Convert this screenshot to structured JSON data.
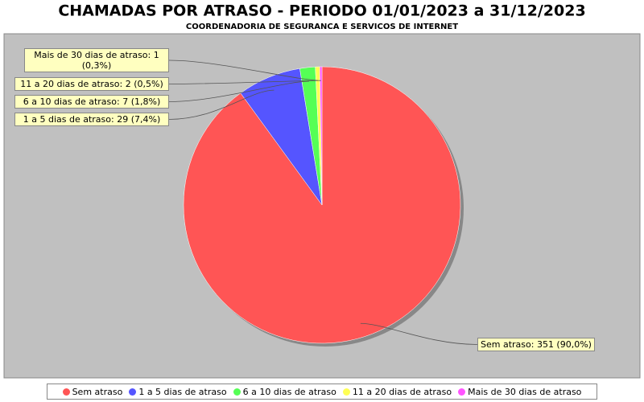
{
  "chart_data": {
    "type": "pie",
    "title": "CHAMADAS POR ATRASO - PERIODO 01/01/2023 a 31/12/2023",
    "subtitle": "COORDENADORIA DE SEGURANCA E SERVICOS DE INTERNET",
    "categories": [
      "Sem atraso",
      "1 a 5 dias de atraso",
      "6 a 10 dias de atraso",
      "11 a 20 dias de atraso",
      "Mais de 30 dias de atraso"
    ],
    "values": [
      351,
      29,
      7,
      2,
      1
    ],
    "value_labels": [
      "Sem atraso: 351 (90,0%)",
      "1 a 5 dias de atraso: 29 (7,4%)",
      "6 a 10 dias de atraso: 7 (1,8%)",
      "11 a 20 dias de atraso: 2 (0,5%)",
      "Mais de 30 dias de atraso: 1 (0,3%)"
    ],
    "colors": [
      "#ff5555",
      "#5555ff",
      "#55ff55",
      "#ffff55",
      "#ff55ff"
    ],
    "legend": "bottom"
  }
}
